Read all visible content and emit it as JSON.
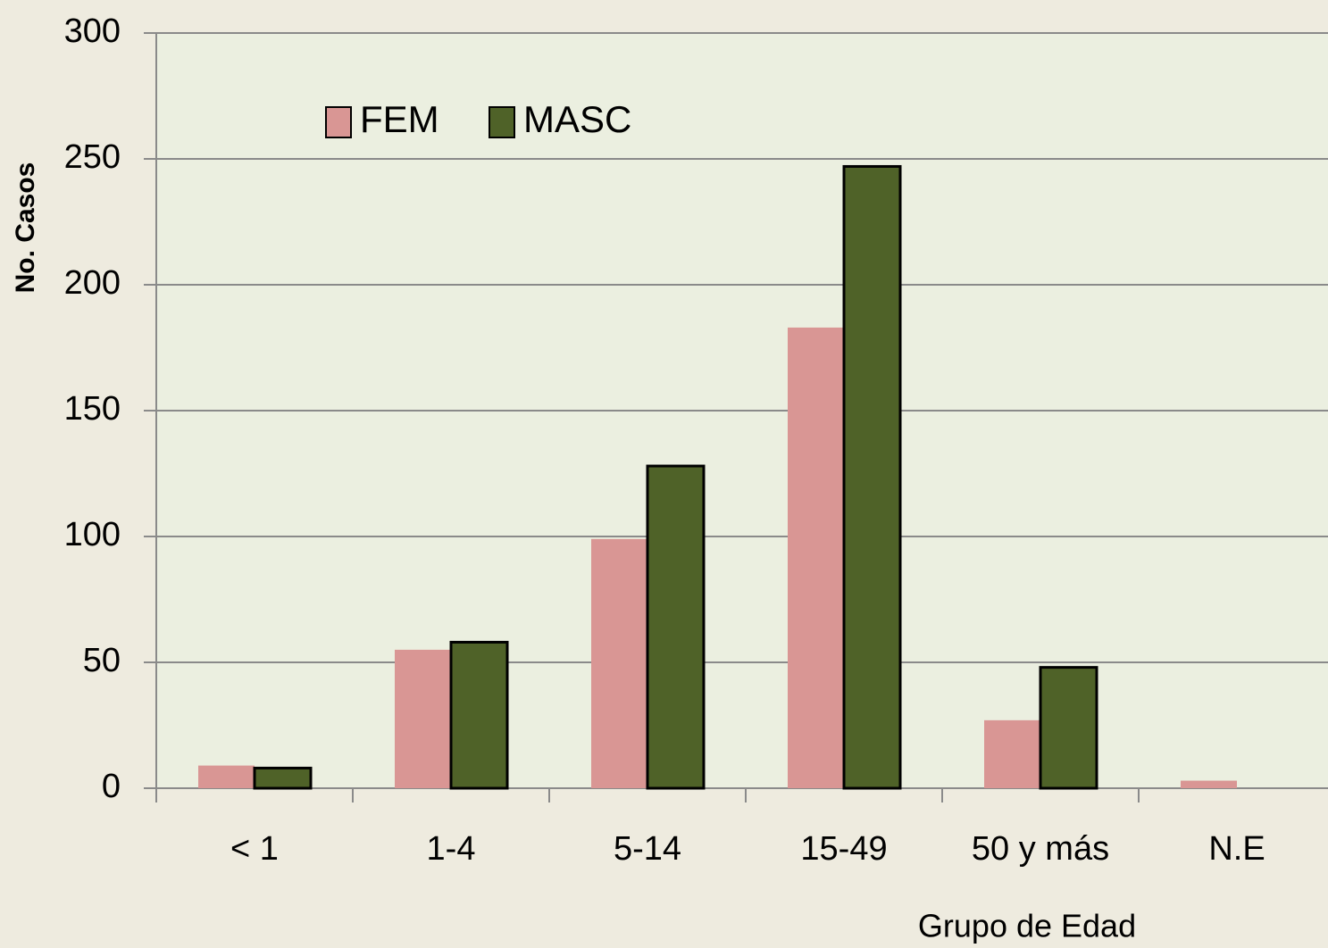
{
  "chart_data": {
    "type": "bar",
    "categories": [
      "< 1",
      "1-4",
      "5-14",
      "15-49",
      "50 y más",
      "N.E"
    ],
    "series": [
      {
        "name": "FEM",
        "color": "#d99694",
        "values": [
          9,
          55,
          99,
          183,
          27,
          3
        ]
      },
      {
        "name": "MASC",
        "color": "#4f6228",
        "values": [
          8,
          58,
          128,
          247,
          48,
          0
        ]
      }
    ],
    "ylim": [
      0,
      300
    ],
    "yticks": [
      0,
      50,
      100,
      150,
      200,
      250,
      300
    ],
    "grid": true,
    "y_label": "No. Casos",
    "x_label": "Grupo de Edad",
    "legend": "top-left"
  }
}
